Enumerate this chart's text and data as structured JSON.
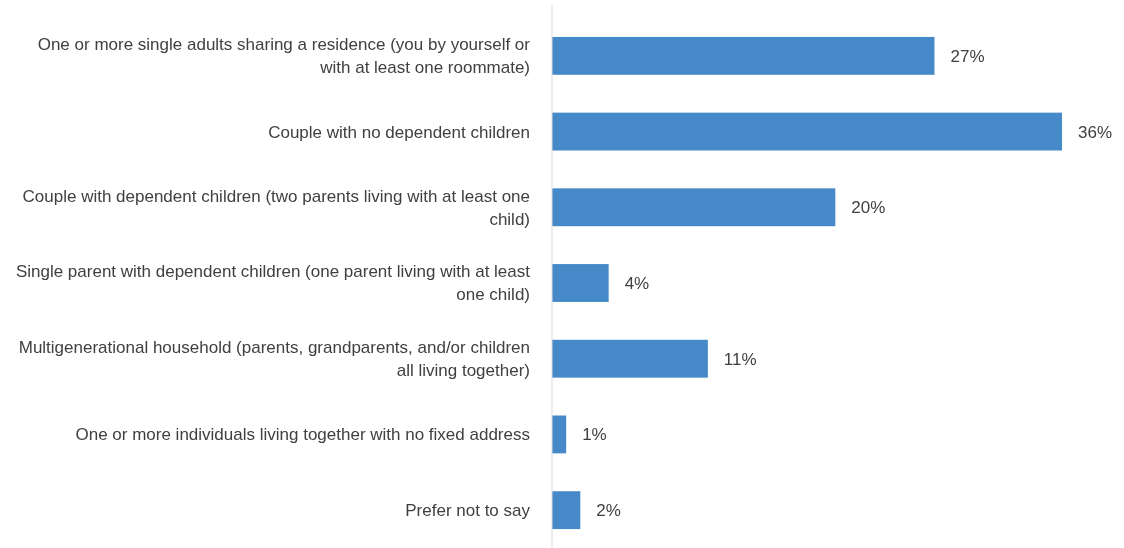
{
  "chart_data": {
    "type": "bar",
    "orientation": "horizontal",
    "categories": [
      "One or more single adults sharing a residence (you by yourself or with at least one roommate)",
      "Couple with no dependent children",
      "Couple with dependent children (two parents living with at least one child)",
      "Single parent with dependent children (one parent living with at least one child)",
      "Multigenerational household (parents, grandparents, and/or children all living together)",
      "One or more individuals living together with no fixed address",
      "Prefer not to say"
    ],
    "values": [
      27,
      36,
      20,
      4,
      11,
      1,
      2
    ],
    "value_labels": [
      "27%",
      "36%",
      "20%",
      "4%",
      "11%",
      "1%",
      "2%"
    ],
    "color": "#4689c8"
  }
}
